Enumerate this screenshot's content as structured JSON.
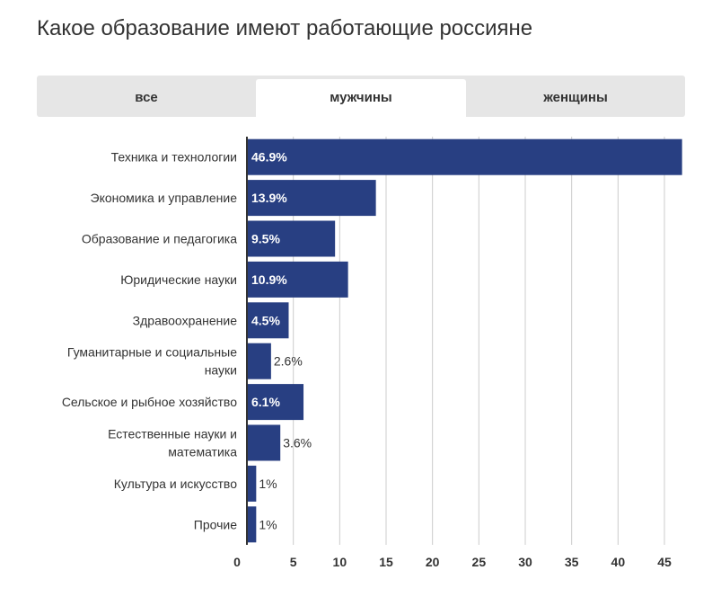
{
  "title": "Какое образование имеют работающие россияне",
  "tabs": [
    {
      "label": "все",
      "active": false
    },
    {
      "label": "мужчины",
      "active": true
    },
    {
      "label": "женщины",
      "active": false
    }
  ],
  "colors": {
    "bar": "#283f82",
    "grid": "#cccccc",
    "axis": "#333333",
    "tab_bg": "#e6e6e6",
    "tab_active": "#ffffff"
  },
  "chart_data": {
    "type": "bar",
    "orientation": "horizontal",
    "categories": [
      "Техника и технологии",
      "Экономика и управление",
      "Образование и педагогика",
      "Юридические науки",
      "Здравоохранение",
      "Гуманитарные и социальные науки",
      "Сельское и рыбное хозяйство",
      "Естественные науки и математика",
      "Культура и искусство",
      "Прочие"
    ],
    "values": [
      46.9,
      13.9,
      9.5,
      10.9,
      4.5,
      2.6,
      6.1,
      3.6,
      1,
      1
    ],
    "value_labels": [
      "46.9%",
      "13.9%",
      "9.5%",
      "10.9%",
      "4.5%",
      "2.6%",
      "6.1%",
      "3.6%",
      "1%",
      "1%"
    ],
    "xticks": [
      0,
      5,
      10,
      15,
      20,
      25,
      30,
      35,
      40,
      45
    ],
    "xtick_labels": [
      "0",
      "5",
      "10",
      "15",
      "20",
      "25",
      "30",
      "35",
      "40",
      "45"
    ],
    "xlim": [
      0,
      47
    ],
    "grid": true,
    "series_name": "мужчины"
  }
}
